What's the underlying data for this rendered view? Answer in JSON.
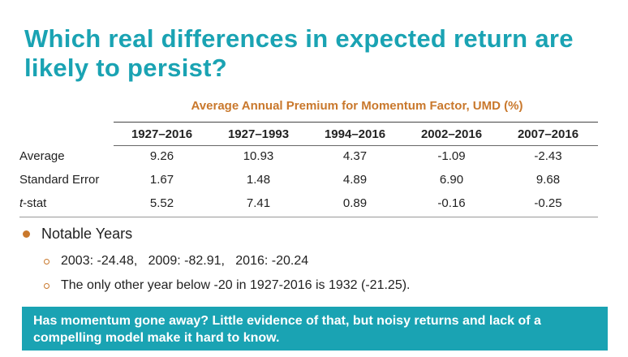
{
  "title": "Which real differences in expected return are likely to persist?",
  "table": {
    "caption": "Average Annual Premium for Momentum Factor, UMD (%)",
    "columns": [
      "1927–2016",
      "1927–1993",
      "1994–2016",
      "2002–2016",
      "2007–2016"
    ],
    "rows": [
      {
        "label": "Average",
        "values": [
          "9.26",
          "10.93",
          "4.37",
          "-1.09",
          "-2.43"
        ]
      },
      {
        "label": "Standard Error",
        "values": [
          "1.67",
          "1.48",
          "4.89",
          "6.90",
          "9.68"
        ]
      },
      {
        "label_italic": "t",
        "label_rest": "-stat",
        "values": [
          "5.52",
          "7.41",
          "0.89",
          "-0.16",
          "-0.25"
        ]
      }
    ]
  },
  "bullets": {
    "main": "Notable Years",
    "sub": [
      "2003: -24.48,   2009: -82.91,   2016: -20.24",
      "The only other year below -20 in 1927-2016 is 1932 (-21.25)."
    ]
  },
  "callout": "Has momentum gone away? Little evidence of that, but noisy returns and lack of a compelling model make it hard to know.",
  "colors": {
    "title": "#1aa3b3",
    "caption": "#c9782c",
    "callout_bg": "#1aa3b3",
    "bullet": "#c9782c"
  }
}
